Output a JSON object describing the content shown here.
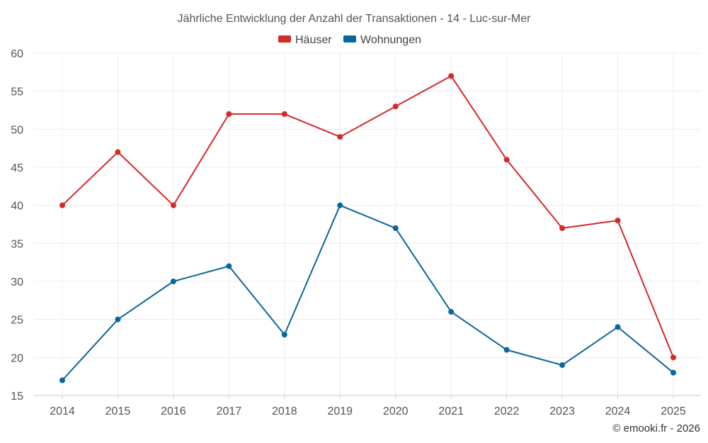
{
  "chart_data": {
    "type": "line",
    "title": "Jährliche Entwicklung der Anzahl der Transaktionen - 14 - Luc-sur-Mer",
    "x": [
      "2014",
      "2015",
      "2016",
      "2017",
      "2018",
      "2019",
      "2020",
      "2021",
      "2022",
      "2023",
      "2024",
      "2025"
    ],
    "series": [
      {
        "name": "Häuser",
        "color": "#d32a2a",
        "values": [
          40,
          47,
          40,
          52,
          52,
          49,
          53,
          57,
          46,
          37,
          38,
          20
        ]
      },
      {
        "name": "Wohnungen",
        "color": "#0a679b",
        "values": [
          17,
          25,
          30,
          32,
          23,
          40,
          37,
          26,
          21,
          19,
          24,
          18
        ]
      }
    ],
    "ylim": [
      15,
      60
    ],
    "yticks": [
      15,
      20,
      25,
      30,
      35,
      40,
      45,
      50,
      55,
      60
    ],
    "xlabel": "",
    "ylabel": "",
    "legend": "top-center",
    "grid": true
  },
  "credit": "© emooki.fr - 2026"
}
